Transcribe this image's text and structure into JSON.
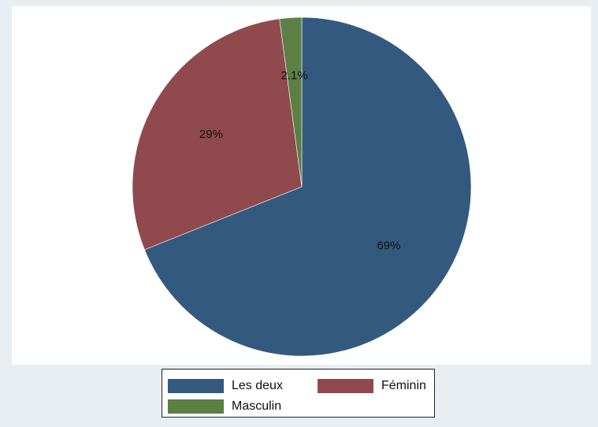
{
  "chart_data": {
    "type": "pie",
    "start_angle_deg": 90,
    "direction": "clockwise",
    "slices": [
      {
        "label": "Les deux",
        "value": 69,
        "value_label": "69%",
        "color": "#335a7e"
      },
      {
        "label": "Féminin",
        "value": 29,
        "value_label": "29%",
        "color": "#904a4d"
      },
      {
        "label": "Masculin",
        "value": 2.1,
        "value_label": "2.1%",
        "color": "#5c7f44"
      }
    ],
    "legend": {
      "placement": "bottom",
      "entries": [
        "Les deux",
        "Féminin",
        "Masculin"
      ]
    }
  }
}
